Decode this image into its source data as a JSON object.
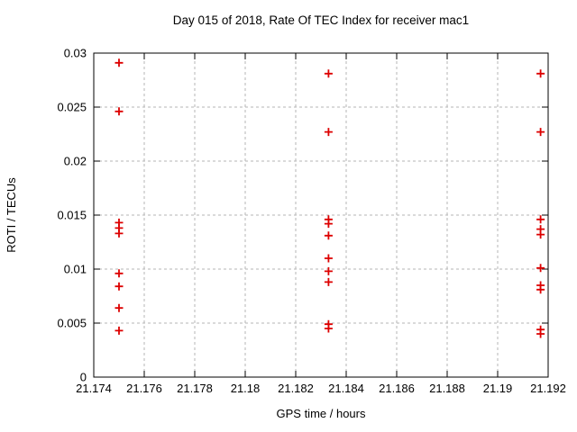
{
  "chart_data": {
    "type": "scatter",
    "title": "Day 015 of 2018, Rate Of TEC Index for receiver mac1",
    "xlabel": "GPS time / hours",
    "ylabel": "ROTI / TECUs",
    "xlim": [
      21.174,
      21.192
    ],
    "ylim": [
      0,
      0.03
    ],
    "grid": true,
    "legend": "none",
    "marker": {
      "shape": "plus",
      "color": "#dd0000",
      "size": 9
    },
    "grid_color": "#b5b5b5",
    "axis_color": "#000000",
    "xticks": [
      {
        "v": 21.174,
        "label": "21.174"
      },
      {
        "v": 21.176,
        "label": "21.176"
      },
      {
        "v": 21.178,
        "label": "21.178"
      },
      {
        "v": 21.18,
        "label": "21.18"
      },
      {
        "v": 21.182,
        "label": "21.182"
      },
      {
        "v": 21.184,
        "label": "21.184"
      },
      {
        "v": 21.186,
        "label": "21.186"
      },
      {
        "v": 21.188,
        "label": "21.188"
      },
      {
        "v": 21.19,
        "label": "21.19"
      },
      {
        "v": 21.192,
        "label": "21.192"
      }
    ],
    "yticks": [
      {
        "v": 0.0,
        "label": "0"
      },
      {
        "v": 0.005,
        "label": "0.005"
      },
      {
        "v": 0.01,
        "label": "0.01"
      },
      {
        "v": 0.015,
        "label": "0.015"
      },
      {
        "v": 0.02,
        "label": "0.02"
      },
      {
        "v": 0.025,
        "label": "0.025"
      },
      {
        "v": 0.03,
        "label": "0.03"
      }
    ],
    "series": [
      {
        "name": "ROTI",
        "points": [
          [
            21.175,
            0.0291
          ],
          [
            21.175,
            0.0246
          ],
          [
            21.175,
            0.0143
          ],
          [
            21.175,
            0.0138
          ],
          [
            21.175,
            0.0133
          ],
          [
            21.175,
            0.0096
          ],
          [
            21.175,
            0.0084
          ],
          [
            21.175,
            0.0064
          ],
          [
            21.175,
            0.0043
          ],
          [
            21.1833,
            0.0281
          ],
          [
            21.1833,
            0.0227
          ],
          [
            21.1833,
            0.0146
          ],
          [
            21.1833,
            0.0142
          ],
          [
            21.1833,
            0.0131
          ],
          [
            21.1833,
            0.011
          ],
          [
            21.1833,
            0.0098
          ],
          [
            21.1833,
            0.0088
          ],
          [
            21.1833,
            0.0049
          ],
          [
            21.1833,
            0.0045
          ],
          [
            21.1917,
            0.0281
          ],
          [
            21.1917,
            0.0227
          ],
          [
            21.1917,
            0.0146
          ],
          [
            21.1917,
            0.0137
          ],
          [
            21.1917,
            0.0132
          ],
          [
            21.1917,
            0.0101
          ],
          [
            21.1917,
            0.0085
          ],
          [
            21.1917,
            0.0081
          ],
          [
            21.1917,
            0.0044
          ],
          [
            21.1917,
            0.004
          ]
        ]
      }
    ]
  }
}
